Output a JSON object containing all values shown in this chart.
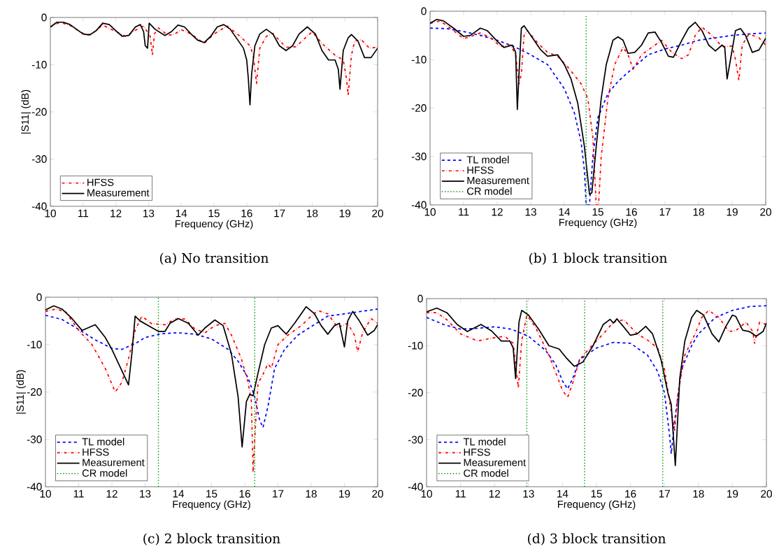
{
  "chart_data": [
    {
      "type": "line",
      "title": "(a)  No transition",
      "xlabel": "Frequency (GHz)",
      "ylabel": "|S11| (dB)",
      "xlim": [
        10,
        20
      ],
      "ylim": [
        -40,
        0
      ],
      "xticks": [
        10,
        11,
        12,
        13,
        14,
        15,
        16,
        17,
        18,
        19,
        20
      ],
      "yticks": [
        -40,
        -30,
        -20,
        -10,
        0
      ],
      "legend": "bottom left",
      "series": [
        {
          "name": "HFSS",
          "color": "#ff0000",
          "line_style": "dashdot",
          "x": [
            10,
            10.3,
            10.6,
            11.1,
            11.3,
            11.6,
            12,
            12.3,
            12.6,
            12.85,
            13.05,
            13.12,
            13.18,
            13.3,
            13.6,
            13.8,
            14,
            14.3,
            14.7,
            15,
            15.4,
            15.8,
            16.1,
            16.2,
            16.3,
            16.4,
            16.6,
            16.8,
            17.2,
            17.5,
            18,
            18.3,
            18.7,
            18.95,
            19.05,
            19.1,
            19.2,
            19.3,
            19.5,
            19.75,
            20
          ],
          "values": [
            -2,
            -1,
            -1.7,
            -3.8,
            -3.3,
            -1.6,
            -3,
            -4,
            -2.7,
            -1.8,
            -4,
            -8,
            -3.5,
            -2.2,
            -3.8,
            -3.5,
            -2.6,
            -3.5,
            -5.5,
            -3.5,
            -1.8,
            -4,
            -6,
            -8,
            -14,
            -6.5,
            -4,
            -3.4,
            -6.3,
            -6.2,
            -3,
            -5.5,
            -8,
            -9,
            -13,
            -16.5,
            -8,
            -5,
            -4.7,
            -6.5,
            -6.3
          ]
        },
        {
          "name": "Measurement",
          "color": "#000000",
          "line_style": "solid",
          "x": [
            10,
            10.2,
            10.4,
            10.6,
            10.8,
            11,
            11.2,
            11.4,
            11.6,
            11.8,
            12,
            12.2,
            12.4,
            12.6,
            12.75,
            12.85,
            12.9,
            12.97,
            13.02,
            13.2,
            13.5,
            13.7,
            13.9,
            14.1,
            14.3,
            14.5,
            14.7,
            14.9,
            15.1,
            15.3,
            15.5,
            15.7,
            15.9,
            16.0,
            16.05,
            16.1,
            16.15,
            16.25,
            16.4,
            16.6,
            16.8,
            17.0,
            17.2,
            17.4,
            17.6,
            17.85,
            18.1,
            18.3,
            18.5,
            18.7,
            18.8,
            18.85,
            18.95,
            19.1,
            19.2,
            19.4,
            19.6,
            19.8,
            20
          ],
          "values": [
            -2,
            -1,
            -1,
            -1.5,
            -2.5,
            -3.5,
            -3.7,
            -2.8,
            -1.2,
            -1.5,
            -2.8,
            -4,
            -3.8,
            -2,
            -1.5,
            -3,
            -6,
            -6.5,
            -1.2,
            -2.5,
            -3.8,
            -3,
            -1.6,
            -2,
            -3.5,
            -4.8,
            -5.3,
            -4,
            -2,
            -1.5,
            -2.5,
            -4.5,
            -6.5,
            -9,
            -13,
            -18.5,
            -12,
            -6,
            -3.5,
            -2.5,
            -3.5,
            -6,
            -7,
            -6,
            -3.5,
            -2,
            -3.5,
            -7,
            -9,
            -9,
            -11,
            -15.2,
            -7,
            -4.3,
            -3.6,
            -5,
            -8.5,
            -8.5,
            -6.5
          ]
        }
      ]
    },
    {
      "type": "line",
      "title": "(b)  1 block transition",
      "xlabel": "Frequency (GHz)",
      "xlim": [
        10,
        20
      ],
      "ylim": [
        -40,
        0
      ],
      "xticks": [
        10,
        11,
        12,
        13,
        14,
        15,
        16,
        17,
        18,
        19,
        20
      ],
      "yticks": [
        -40,
        -30,
        -20,
        -10,
        0
      ],
      "legend": "bottom left",
      "series": [
        {
          "name": "TL model",
          "color": "#0000ff",
          "line_style": "dashed",
          "x": [
            10,
            10.5,
            11,
            11.5,
            12,
            12.5,
            13,
            13.5,
            14,
            14.3,
            14.5,
            14.6,
            14.65,
            14.75,
            14.85,
            15,
            15.3,
            15.6,
            16,
            16.5,
            17,
            17.5,
            18,
            18.5,
            19,
            19.5,
            20
          ],
          "values": [
            -3.5,
            -3.6,
            -4.2,
            -5,
            -6,
            -7.3,
            -9,
            -11,
            -16,
            -21,
            -27,
            -33,
            -40,
            -40,
            -30,
            -22,
            -17,
            -14.5,
            -12,
            -9,
            -7.8,
            -7,
            -6,
            -5.5,
            -5,
            -4.7,
            -4.5
          ]
        },
        {
          "name": "HFSS",
          "color": "#ff0000",
          "line_style": "dashdot",
          "x": [
            10,
            10.3,
            10.7,
            11,
            11.3,
            11.5,
            11.8,
            12.1,
            12.4,
            12.55,
            12.65,
            12.72,
            12.8,
            12.9,
            13.2,
            13.5,
            13.8,
            14.1,
            14.5,
            14.7,
            14.85,
            14.95,
            15.02,
            15.1,
            15.3,
            15.5,
            15.75,
            15.9,
            16.05,
            16.3,
            16.7,
            16.9,
            17.2,
            17.5,
            17.7,
            17.9,
            18.1,
            18.4,
            18.7,
            19.0,
            19.1,
            19.2,
            19.3,
            19.5,
            19.8,
            20
          ],
          "values": [
            -2.5,
            -2,
            -4,
            -5.7,
            -5,
            -4.5,
            -5.5,
            -7.3,
            -7,
            -9,
            -15,
            -13,
            -5,
            -4,
            -6.5,
            -8.5,
            -9.3,
            -11.5,
            -15,
            -18,
            -26,
            -40,
            -40,
            -30,
            -18,
            -11,
            -7.5,
            -9,
            -12,
            -9,
            -7,
            -6,
            -8.5,
            -9.8,
            -9,
            -5,
            -3.3,
            -5,
            -7.3,
            -7.2,
            -10,
            -14.3,
            -7,
            -4.7,
            -5.5,
            -7
          ]
        },
        {
          "name": "Measurement",
          "color": "#000000",
          "line_style": "solid",
          "x": [
            10,
            10.2,
            10.4,
            10.7,
            11,
            11.2,
            11.5,
            11.7,
            12,
            12.2,
            12.45,
            12.55,
            12.6,
            12.65,
            12.72,
            12.8,
            13.0,
            13.3,
            13.5,
            13.8,
            14.0,
            14.2,
            14.4,
            14.6,
            14.75,
            14.82,
            14.95,
            15.1,
            15.25,
            15.45,
            15.6,
            15.75,
            15.9,
            16.1,
            16.3,
            16.5,
            16.7,
            16.9,
            17.1,
            17.25,
            17.5,
            17.7,
            17.9,
            18.1,
            18.3,
            18.5,
            18.7,
            18.78,
            18.85,
            18.95,
            19.1,
            19.25,
            19.4,
            19.6,
            19.8,
            20
          ],
          "values": [
            -2.5,
            -1.7,
            -2,
            -3.5,
            -5.2,
            -5,
            -3.5,
            -4,
            -6.2,
            -7.5,
            -7,
            -8.5,
            -20.3,
            -13,
            -3.5,
            -3,
            -5,
            -8,
            -9.3,
            -9,
            -11,
            -14,
            -19,
            -28,
            -37.8,
            -37.5,
            -28,
            -18,
            -11,
            -6,
            -5.3,
            -6,
            -8.7,
            -8.5,
            -7,
            -4.5,
            -4.3,
            -6.5,
            -9.3,
            -9.5,
            -6,
            -3.5,
            -2.3,
            -4,
            -7,
            -8.2,
            -7,
            -7.5,
            -14,
            -10,
            -4,
            -3.6,
            -5,
            -8.5,
            -8,
            -5.6
          ]
        },
        {
          "name": "CR model",
          "color": "#009900",
          "line_style": "dotted",
          "x": [
            14.65,
            14.65
          ],
          "values": [
            -40,
            -1
          ]
        }
      ]
    },
    {
      "type": "line",
      "title": "(c)  2 block transition",
      "xlabel": "Frequency (GHz)",
      "ylabel": "|S11| (dB)",
      "xlim": [
        10,
        20
      ],
      "ylim": [
        -40,
        0
      ],
      "xticks": [
        10,
        11,
        12,
        13,
        14,
        15,
        16,
        17,
        18,
        19,
        20
      ],
      "yticks": [
        -40,
        -30,
        -20,
        -10,
        0
      ],
      "legend": "bottom left",
      "series": [
        {
          "name": "TL model",
          "color": "#0000ff",
          "line_style": "dashed",
          "x": [
            10,
            10.5,
            11,
            11.5,
            12,
            12.3,
            12.7,
            13,
            13.5,
            14,
            14.5,
            15,
            15.5,
            15.8,
            16.1,
            16.3,
            16.45,
            16.55,
            16.7,
            16.9,
            17.2,
            17.6,
            18,
            18.5,
            19,
            19.5,
            20
          ],
          "values": [
            -3.8,
            -4.7,
            -6.8,
            -9,
            -10.8,
            -11,
            -9.8,
            -8.5,
            -7.7,
            -7.5,
            -7.8,
            -8.8,
            -11,
            -13.5,
            -17,
            -21,
            -26,
            -27.5,
            -23,
            -15,
            -11,
            -8,
            -6.2,
            -4,
            -3.5,
            -3,
            -2.5
          ]
        },
        {
          "name": "HFSS",
          "color": "#ff0000",
          "line_style": "dashdot",
          "x": [
            10,
            10.3,
            10.6,
            11,
            11.4,
            11.8,
            12.1,
            12.3,
            12.5,
            12.7,
            12.9,
            13.2,
            13.6,
            13.9,
            14.2,
            14.5,
            14.8,
            15.1,
            15.4,
            15.6,
            15.9,
            16.1,
            16.2,
            16.25,
            16.3,
            16.4,
            16.5,
            16.7,
            16.8,
            17,
            17.3,
            17.7,
            18,
            18.2,
            18.5,
            18.8,
            19.1,
            19.3,
            19.4,
            19.55,
            19.8,
            20
          ],
          "values": [
            -3,
            -2.5,
            -3,
            -7,
            -10,
            -15,
            -20,
            -18,
            -13,
            -7,
            -4,
            -5.6,
            -5.8,
            -4.6,
            -4.6,
            -6.7,
            -7.5,
            -6,
            -5.5,
            -8,
            -13,
            -18,
            -22,
            -37,
            -30,
            -18,
            -17,
            -14,
            -15,
            -10,
            -8,
            -6,
            -4,
            -2.8,
            -3.5,
            -6.4,
            -5.5,
            -8,
            -11.5,
            -7.5,
            -4.5,
            -5.5
          ]
        },
        {
          "name": "Measurement",
          "color": "#000000",
          "line_style": "solid",
          "x": [
            10,
            10.25,
            10.5,
            10.8,
            11.1,
            11.5,
            11.8,
            12.0,
            12.2,
            12.5,
            12.6,
            12.7,
            12.85,
            13.1,
            13.4,
            13.6,
            13.75,
            14,
            14.3,
            14.6,
            14.8,
            15.1,
            15.35,
            15.6,
            15.8,
            15.92,
            16.05,
            16.15,
            16.25,
            16.4,
            16.6,
            16.8,
            17.0,
            17.25,
            17.5,
            17.85,
            18.1,
            18.3,
            18.5,
            18.7,
            18.85,
            19.0,
            19.1,
            19.25,
            19.45,
            19.7,
            19.9,
            20
          ],
          "values": [
            -2.7,
            -1.8,
            -2.5,
            -4.5,
            -7,
            -5.8,
            -8.5,
            -11,
            -14,
            -18.5,
            -12,
            -4,
            -5,
            -6,
            -7.2,
            -7.2,
            -5.5,
            -4.5,
            -5.5,
            -8,
            -6.5,
            -4.8,
            -6,
            -12,
            -21,
            -31.6,
            -22,
            -20.5,
            -20.8,
            -16,
            -10,
            -6.5,
            -6,
            -7.8,
            -5.5,
            -2,
            -3.5,
            -6,
            -7.8,
            -6,
            -5.5,
            -10.5,
            -5,
            -3,
            -5,
            -8,
            -7,
            -5.8
          ]
        },
        {
          "name": "CR model",
          "color": "#009900",
          "line_style": "dotted",
          "x": [
            13.4,
            13.4,
            null,
            16.3,
            16.3
          ],
          "values": [
            -40,
            0,
            null,
            -40,
            0
          ]
        }
      ]
    },
    {
      "type": "line",
      "title": "(d)  3 block transition",
      "xlabel": "Frequency (GHz)",
      "xlim": [
        10,
        20
      ],
      "ylim": [
        -40,
        0
      ],
      "xticks": [
        10,
        11,
        12,
        13,
        14,
        15,
        16,
        17,
        18,
        19,
        20
      ],
      "yticks": [
        -40,
        -30,
        -20,
        -10,
        0
      ],
      "legend": "bottom left",
      "series": [
        {
          "name": "TL model",
          "color": "#0000ff",
          "line_style": "dashed",
          "x": [
            10,
            10.5,
            11,
            11.5,
            12,
            12.5,
            13,
            13.5,
            13.8,
            14,
            14.15,
            14.3,
            14.5,
            14.8,
            15,
            15.5,
            16,
            16.5,
            16.8,
            17,
            17.15,
            17.2,
            17.3,
            17.5,
            17.8,
            18,
            18.5,
            19,
            19.5,
            20
          ],
          "values": [
            -4,
            -5.5,
            -6.5,
            -6.3,
            -6,
            -6.5,
            -8,
            -11,
            -14,
            -17.5,
            -19.2,
            -17,
            -13,
            -11.5,
            -10.5,
            -9.3,
            -9.5,
            -12,
            -15.5,
            -20,
            -29,
            -33,
            -26,
            -15,
            -10,
            -7.5,
            -4,
            -2.5,
            -1.7,
            -1.5
          ]
        },
        {
          "name": "HFSS",
          "color": "#ff0000",
          "line_style": "dashdot",
          "x": [
            10,
            10.3,
            10.6,
            11,
            11.5,
            12,
            12.3,
            12.55,
            12.7,
            12.8,
            12.95,
            13.2,
            13.6,
            14,
            14.15,
            14.3,
            14.5,
            14.8,
            15.2,
            15.5,
            15.8,
            16.2,
            16.5,
            16.8,
            17.0,
            17.2,
            17.3,
            17.4,
            17.6,
            17.9,
            18.1,
            18.3,
            18.6,
            18.9,
            19.1,
            19.4,
            19.6,
            19.65,
            19.8,
            20
          ],
          "values": [
            -3,
            -3,
            -4.5,
            -7.5,
            -9,
            -8.3,
            -8,
            -9.5,
            -19,
            -9,
            -3.5,
            -6,
            -12,
            -19.5,
            -21,
            -18,
            -13,
            -10.5,
            -7.5,
            -5,
            -4.5,
            -7.5,
            -8.8,
            -10.5,
            -15,
            -24,
            -28,
            -20,
            -12,
            -7.5,
            -4,
            -2.5,
            -4,
            -7,
            -6.8,
            -5,
            -7,
            -9.5,
            -5,
            -5.5
          ]
        },
        {
          "name": "Measurement",
          "color": "#000000",
          "line_style": "solid",
          "x": [
            10,
            10.3,
            10.6,
            10.9,
            11.2,
            11.6,
            11.9,
            12.2,
            12.45,
            12.55,
            12.62,
            12.72,
            12.8,
            13.0,
            13.3,
            13.6,
            13.9,
            14.1,
            14.35,
            14.6,
            14.9,
            15.2,
            15.4,
            15.5,
            15.6,
            15.8,
            16.0,
            16.2,
            16.45,
            16.65,
            16.9,
            17.1,
            17.2,
            17.25,
            17.32,
            17.45,
            17.6,
            17.8,
            17.95,
            18.15,
            18.4,
            18.6,
            18.8,
            19.0,
            19.1,
            19.3,
            19.5,
            19.7,
            19.9,
            20
          ],
          "values": [
            -2.8,
            -2,
            -3,
            -5.5,
            -7,
            -5.5,
            -6.8,
            -9,
            -9,
            -10.5,
            -17,
            -5,
            -2.5,
            -3.5,
            -6.5,
            -10,
            -10.7,
            -12.5,
            -14.4,
            -13.5,
            -10,
            -5.5,
            -4.4,
            -5.2,
            -4.3,
            -6,
            -7.8,
            -7.5,
            -5.9,
            -7.5,
            -13,
            -20,
            -22.5,
            -28,
            -35.5,
            -17,
            -9,
            -4,
            -2.5,
            -3.5,
            -7.5,
            -9.2,
            -6,
            -3.5,
            -3.8,
            -6.7,
            -7,
            -8,
            -7,
            -5.2
          ]
        },
        {
          "name": "CR model",
          "color": "#009900",
          "line_style": "dotted",
          "x": [
            12.95,
            12.95,
            null,
            14.65,
            14.65,
            null,
            16.95,
            16.95
          ],
          "values": [
            -40,
            0,
            null,
            -40,
            0,
            null,
            -40,
            0
          ]
        }
      ]
    }
  ]
}
